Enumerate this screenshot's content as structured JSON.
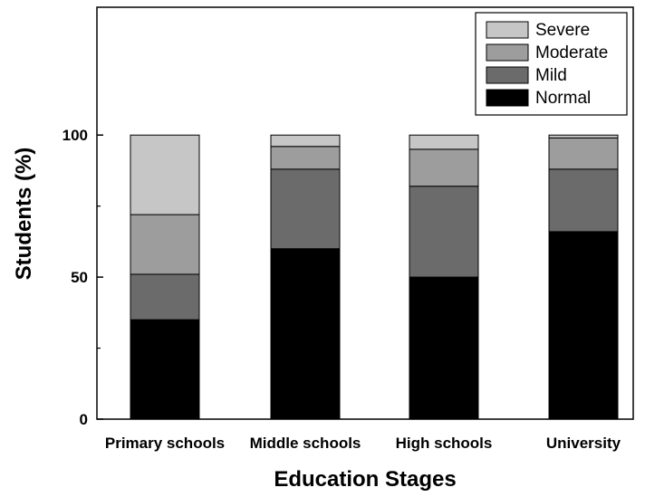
{
  "chart_data": {
    "type": "bar",
    "stacked": true,
    "xlabel": "Education Stages",
    "ylabel": "Students (%)",
    "categories": [
      "Primary schools",
      "Middle schools",
      "High schools",
      "University"
    ],
    "series": [
      {
        "name": "Normal",
        "color": "#000000",
        "values": [
          35,
          60,
          50,
          66
        ]
      },
      {
        "name": "Mild",
        "color": "#6b6b6b",
        "values": [
          16,
          28,
          32,
          22
        ]
      },
      {
        "name": "Moderate",
        "color": "#9d9d9d",
        "values": [
          21,
          8,
          13,
          11
        ]
      },
      {
        "name": "Severe",
        "color": "#c6c6c6",
        "values": [
          28,
          4,
          5,
          1
        ]
      }
    ],
    "ylim": [
      0,
      145
    ],
    "yticks": [
      0,
      50,
      100
    ],
    "legend": {
      "position": "top-right",
      "order": [
        "Severe",
        "Moderate",
        "Mild",
        "Normal"
      ]
    },
    "grid": false
  }
}
